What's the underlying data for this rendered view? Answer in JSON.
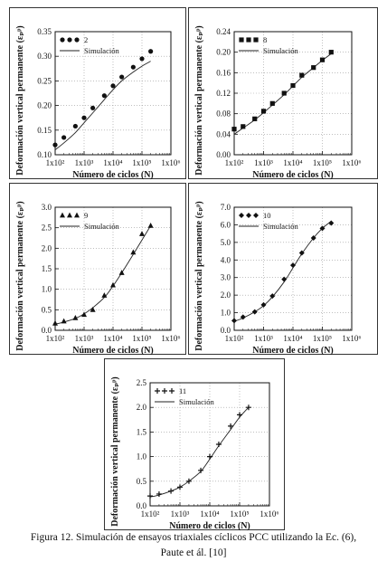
{
  "caption": {
    "line1": "Figura 12. Simulación de ensayos triaxiales cíclicos PCC utilizando la Ec. (6),",
    "line2": "Paute et ál. [10]"
  },
  "chart_data": [
    {
      "type": "scatter",
      "xlabel": "Número de ciclos (N)",
      "ylabel": "Deformación vertical permanente (εₚᵖ)",
      "x_scale": "log",
      "x_ticks": [
        100,
        1000,
        10000,
        100000,
        1000000
      ],
      "x_tick_labels": [
        "1x10²",
        "1x10³",
        "1x10⁴",
        "1x10⁵",
        "1x10⁶"
      ],
      "xlim": [
        100,
        1000000
      ],
      "ylim": [
        0.1,
        0.35
      ],
      "y_ticks": [
        0.1,
        0.15,
        0.2,
        0.25,
        0.3,
        0.35
      ],
      "y_tick_labels": [
        "0.10",
        "0.15",
        "0.20",
        "0.25",
        "0.30",
        "0.35"
      ],
      "marker": "circle",
      "legend_position": "top-left",
      "series": [
        {
          "name": "2",
          "x": [
            100,
            200,
            500,
            1000,
            2000,
            5000,
            10000,
            20000,
            50000,
            100000,
            200000
          ],
          "y": [
            0.12,
            0.135,
            0.158,
            0.175,
            0.195,
            0.22,
            0.24,
            0.258,
            0.278,
            0.295,
            0.31
          ]
        },
        {
          "name": "Simulación",
          "x": [
            100,
            200,
            500,
            1000,
            2000,
            5000,
            10000,
            20000,
            50000,
            100000,
            200000
          ],
          "y": [
            0.11,
            0.124,
            0.145,
            0.165,
            0.185,
            0.212,
            0.232,
            0.25,
            0.268,
            0.28,
            0.29
          ]
        }
      ]
    },
    {
      "type": "scatter",
      "xlabel": "Número de ciclos (N)",
      "ylabel": "Deformación vertical permanente (εₚᵖ)",
      "x_scale": "log",
      "x_ticks": [
        100,
        1000,
        10000,
        100000,
        1000000
      ],
      "x_tick_labels": [
        "1x10²",
        "1x10³",
        "1x10⁴",
        "1x10⁵",
        "1x10⁶"
      ],
      "xlim": [
        100,
        1000000
      ],
      "ylim": [
        0.0,
        0.24
      ],
      "y_ticks": [
        0.0,
        0.04,
        0.08,
        0.12,
        0.16,
        0.2,
        0.24
      ],
      "y_tick_labels": [
        "0.00",
        "0.04",
        "0.08",
        "0.12",
        "0.16",
        "0.20",
        "0.24"
      ],
      "marker": "square",
      "legend_position": "top-left",
      "series": [
        {
          "name": "8",
          "x": [
            100,
            200,
            500,
            1000,
            2000,
            5000,
            10000,
            20000,
            50000,
            100000,
            200000
          ],
          "y": [
            0.05,
            0.055,
            0.07,
            0.085,
            0.1,
            0.12,
            0.135,
            0.155,
            0.17,
            0.185,
            0.2
          ]
        },
        {
          "name": "Simulación",
          "x": [
            100,
            200,
            500,
            1000,
            2000,
            5000,
            10000,
            20000,
            50000,
            100000,
            200000
          ],
          "y": [
            0.04,
            0.052,
            0.068,
            0.082,
            0.097,
            0.117,
            0.134,
            0.151,
            0.17,
            0.184,
            0.197
          ]
        }
      ]
    },
    {
      "type": "scatter",
      "xlabel": "Número de ciclos (N)",
      "ylabel": "Deformación vertical permanente (εₚᵖ)",
      "x_scale": "log",
      "x_ticks": [
        100,
        1000,
        10000,
        100000,
        1000000
      ],
      "x_tick_labels": [
        "1x10²",
        "1x10³",
        "1x10⁴",
        "1x10⁵",
        "1x10⁶"
      ],
      "xlim": [
        100,
        1000000
      ],
      "ylim": [
        0.0,
        3.0
      ],
      "y_ticks": [
        0.0,
        0.5,
        1.0,
        1.5,
        2.0,
        2.5,
        3.0
      ],
      "y_tick_labels": [
        "0.0",
        "0.5",
        "1.0",
        "1.5",
        "2.0",
        "2.5",
        "3.0"
      ],
      "marker": "triangle",
      "legend_position": "top-left",
      "series": [
        {
          "name": "9",
          "x": [
            100,
            200,
            500,
            1000,
            2000,
            5000,
            10000,
            20000,
            50000,
            100000,
            200000
          ],
          "y": [
            0.17,
            0.22,
            0.3,
            0.38,
            0.5,
            0.85,
            1.1,
            1.4,
            1.9,
            2.35,
            2.55
          ]
        },
        {
          "name": "Simulación",
          "x": [
            100,
            200,
            500,
            1000,
            2000,
            5000,
            10000,
            20000,
            50000,
            100000,
            200000
          ],
          "y": [
            0.15,
            0.2,
            0.29,
            0.4,
            0.55,
            0.8,
            1.08,
            1.4,
            1.85,
            2.2,
            2.55
          ]
        }
      ]
    },
    {
      "type": "scatter",
      "xlabel": "Número de ciclos (N)",
      "ylabel": "Deformación vertical permanente (εₚᵖ)",
      "x_scale": "log",
      "x_ticks": [
        100,
        1000,
        10000,
        100000,
        1000000
      ],
      "x_tick_labels": [
        "1x10²",
        "1x10³",
        "1x10⁴",
        "1x10⁵",
        "1x10⁶"
      ],
      "xlim": [
        100,
        1000000
      ],
      "ylim": [
        0.0,
        7.0
      ],
      "y_ticks": [
        0.0,
        1.0,
        2.0,
        3.0,
        4.0,
        5.0,
        6.0,
        7.0
      ],
      "y_tick_labels": [
        "0.0",
        "1.0",
        "2.0",
        "3.0",
        "4.0",
        "5.0",
        "6.0",
        "7.0"
      ],
      "marker": "diamond",
      "legend_position": "top-left",
      "series": [
        {
          "name": "10",
          "x": [
            100,
            200,
            500,
            1000,
            2000,
            5000,
            10000,
            20000,
            50000,
            100000,
            200000
          ],
          "y": [
            0.55,
            0.75,
            1.05,
            1.45,
            1.95,
            2.9,
            3.7,
            4.4,
            5.25,
            5.8,
            6.1
          ]
        },
        {
          "name": "Simulación",
          "x": [
            100,
            200,
            500,
            1000,
            2000,
            5000,
            10000,
            20000,
            50000,
            100000,
            200000
          ],
          "y": [
            0.5,
            0.7,
            1.05,
            1.4,
            1.9,
            2.75,
            3.55,
            4.35,
            5.25,
            5.8,
            6.2
          ]
        }
      ]
    },
    {
      "type": "scatter",
      "xlabel": "Número de ciclos (N)",
      "ylabel": "Deformación vertical permanente (εₚᵖ)",
      "x_scale": "log",
      "x_ticks": [
        100,
        1000,
        10000,
        100000,
        1000000
      ],
      "x_tick_labels": [
        "1x10²",
        "1x10³",
        "1x10⁴",
        "1x10⁵",
        "1x10⁶"
      ],
      "xlim": [
        100,
        1000000
      ],
      "ylim": [
        0.0,
        2.5
      ],
      "y_ticks": [
        0.0,
        0.5,
        1.0,
        1.5,
        2.0,
        2.5
      ],
      "y_tick_labels": [
        "0.0",
        "0.5",
        "1.0",
        "1.5",
        "2.0",
        "2.5"
      ],
      "marker": "plus",
      "legend_position": "top-left",
      "series": [
        {
          "name": "11",
          "x": [
            100,
            200,
            500,
            1000,
            2000,
            5000,
            10000,
            20000,
            50000,
            100000,
            200000
          ],
          "y": [
            0.2,
            0.24,
            0.3,
            0.38,
            0.5,
            0.72,
            1.0,
            1.25,
            1.62,
            1.85,
            2.0
          ]
        },
        {
          "name": "Simulación",
          "x": [
            100,
            200,
            500,
            1000,
            2000,
            5000,
            10000,
            20000,
            50000,
            100000,
            200000
          ],
          "y": [
            0.18,
            0.22,
            0.3,
            0.38,
            0.5,
            0.7,
            0.95,
            1.22,
            1.55,
            1.8,
            2.0
          ]
        }
      ]
    }
  ]
}
